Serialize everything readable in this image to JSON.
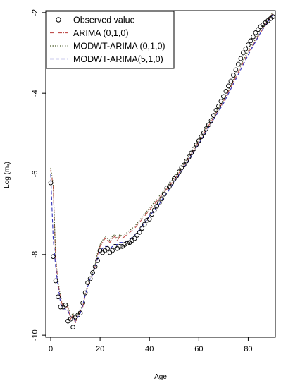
{
  "chart_data": {
    "type": "line",
    "xlabel": "Age",
    "ylabel": "Log (mₓ)",
    "xlim": [
      -2,
      91
    ],
    "ylim": [
      -10.05,
      -1.95
    ],
    "x_ticks": [
      0,
      20,
      40,
      60,
      80
    ],
    "y_ticks": [
      -10,
      -8,
      -6,
      -4,
      -2
    ],
    "legend_position": "top-left",
    "grid": false,
    "legend": [
      {
        "label": "Observed value",
        "kind": "marker"
      },
      {
        "label": "ARIMA (0,1,0)",
        "kind": "line",
        "color": "#c0504d",
        "dash": "6,2,1,2"
      },
      {
        "label": "MODWT-ARIMA (0,1,0)",
        "kind": "line",
        "color": "#4a5a28",
        "dash": "1.5,2"
      },
      {
        "label": "MODWT-ARIMA(5,1,0)",
        "kind": "line",
        "color": "#3333bb",
        "dash": "5,3"
      }
    ],
    "observed": {
      "name": "Observed value",
      "x": [
        0,
        1,
        2,
        3,
        4,
        5,
        6,
        7,
        8,
        9,
        10,
        11,
        12,
        13,
        14,
        15,
        16,
        17,
        18,
        19,
        20,
        21,
        22,
        23,
        24,
        25,
        26,
        27,
        28,
        29,
        30,
        31,
        32,
        33,
        34,
        35,
        36,
        37,
        38,
        39,
        40,
        41,
        42,
        43,
        44,
        45,
        46,
        47,
        48,
        49,
        50,
        51,
        52,
        53,
        54,
        55,
        56,
        57,
        58,
        59,
        60,
        61,
        62,
        63,
        64,
        65,
        66,
        67,
        68,
        69,
        70,
        71,
        72,
        73,
        74,
        75,
        76,
        77,
        78,
        79,
        80,
        81,
        82,
        83,
        84,
        85,
        86,
        87,
        88,
        89,
        90
      ],
      "y": [
        -6.22,
        -8.05,
        -8.65,
        -9.05,
        -9.3,
        -9.3,
        -9.25,
        -9.65,
        -9.6,
        -9.8,
        -9.55,
        -9.5,
        -9.45,
        -9.2,
        -8.95,
        -8.7,
        -8.6,
        -8.45,
        -8.3,
        -8.15,
        -7.9,
        -7.95,
        -7.9,
        -7.85,
        -7.95,
        -7.9,
        -7.8,
        -7.85,
        -7.8,
        -7.8,
        -7.75,
        -7.72,
        -7.7,
        -7.65,
        -7.6,
        -7.52,
        -7.45,
        -7.35,
        -7.25,
        -7.15,
        -7.12,
        -7.0,
        -6.9,
        -6.8,
        -6.72,
        -6.62,
        -6.5,
        -6.35,
        -6.32,
        -6.22,
        -6.12,
        -6.05,
        -5.95,
        -5.85,
        -5.78,
        -5.68,
        -5.58,
        -5.48,
        -5.38,
        -5.28,
        -5.18,
        -5.08,
        -4.98,
        -4.88,
        -4.78,
        -4.68,
        -4.55,
        -4.42,
        -4.32,
        -4.2,
        -4.08,
        -3.95,
        -3.82,
        -3.7,
        -3.55,
        -3.42,
        -3.28,
        -3.14,
        -3.0,
        -2.9,
        -2.8,
        -2.7,
        -2.6,
        -2.5,
        -2.42,
        -2.35,
        -2.3,
        -2.25,
        -2.2,
        -2.15,
        -2.1
      ]
    },
    "series": [
      {
        "name": "ARIMA (0,1,0)",
        "x": [
          0,
          1,
          2,
          3,
          4,
          5,
          6,
          7,
          8,
          9,
          10,
          11,
          12,
          13,
          14,
          15,
          16,
          17,
          18,
          19,
          20,
          21,
          22,
          23,
          24,
          25,
          26,
          27,
          28,
          29,
          30,
          32,
          34,
          36,
          38,
          40,
          42,
          44,
          46,
          48,
          50,
          55,
          60,
          65,
          70,
          75,
          80,
          85,
          90
        ],
        "y": [
          -5.9,
          -6.3,
          -8.1,
          -8.7,
          -9.1,
          -9.3,
          -9.3,
          -9.3,
          -9.6,
          -9.5,
          -9.7,
          -9.5,
          -9.4,
          -9.3,
          -9.0,
          -8.8,
          -8.6,
          -8.5,
          -8.3,
          -8.0,
          -7.8,
          -7.7,
          -7.6,
          -7.65,
          -7.7,
          -7.6,
          -7.55,
          -7.65,
          -7.55,
          -7.6,
          -7.55,
          -7.45,
          -7.35,
          -7.2,
          -7.05,
          -6.9,
          -6.75,
          -6.6,
          -6.45,
          -6.3,
          -6.15,
          -5.7,
          -5.2,
          -4.7,
          -4.2,
          -3.6,
          -3.0,
          -2.5,
          -2.0
        ]
      },
      {
        "name": "MODWT-ARIMA (0,1,0)",
        "x": [
          0,
          1,
          2,
          3,
          4,
          5,
          6,
          7,
          8,
          9,
          10,
          11,
          12,
          13,
          14,
          15,
          16,
          17,
          18,
          19,
          20,
          21,
          22,
          23,
          24,
          25,
          26,
          27,
          28,
          29,
          30,
          32,
          34,
          36,
          38,
          40,
          42,
          44,
          46,
          48,
          50,
          55,
          60,
          65,
          70,
          75,
          80,
          85,
          90
        ],
        "y": [
          -5.85,
          -6.25,
          -8.05,
          -8.65,
          -9.05,
          -9.25,
          -9.25,
          -9.25,
          -9.55,
          -9.45,
          -9.65,
          -9.45,
          -9.35,
          -9.25,
          -8.95,
          -8.75,
          -8.55,
          -8.45,
          -8.25,
          -7.95,
          -7.75,
          -7.65,
          -7.55,
          -7.6,
          -7.65,
          -7.55,
          -7.5,
          -7.6,
          -7.5,
          -7.55,
          -7.5,
          -7.4,
          -7.3,
          -7.15,
          -7.0,
          -6.85,
          -6.7,
          -6.55,
          -6.4,
          -6.25,
          -6.1,
          -5.65,
          -5.15,
          -4.65,
          -4.15,
          -3.55,
          -2.95,
          -2.45,
          -1.98
        ]
      },
      {
        "name": "MODWT-ARIMA(5,1,0)",
        "x": [
          0,
          1,
          2,
          3,
          4,
          5,
          6,
          7,
          8,
          9,
          10,
          11,
          12,
          13,
          14,
          15,
          16,
          17,
          18,
          19,
          20,
          21,
          22,
          23,
          24,
          25,
          26,
          27,
          28,
          29,
          30,
          32,
          34,
          36,
          38,
          40,
          42,
          44,
          46,
          48,
          50,
          55,
          60,
          65,
          70,
          75,
          80,
          85,
          90
        ],
        "y": [
          -6.0,
          -7.6,
          -8.3,
          -8.8,
          -9.2,
          -9.35,
          -9.35,
          -9.4,
          -9.55,
          -9.55,
          -9.65,
          -9.55,
          -9.45,
          -9.25,
          -9.0,
          -8.8,
          -8.6,
          -8.5,
          -8.3,
          -8.1,
          -7.9,
          -7.85,
          -7.8,
          -7.8,
          -7.85,
          -7.8,
          -7.75,
          -7.75,
          -7.7,
          -7.7,
          -7.7,
          -7.62,
          -7.52,
          -7.38,
          -7.22,
          -7.05,
          -6.9,
          -6.75,
          -6.55,
          -6.4,
          -6.2,
          -5.75,
          -5.25,
          -4.75,
          -4.25,
          -3.65,
          -3.05,
          -2.5,
          -2.05
        ]
      }
    ]
  }
}
